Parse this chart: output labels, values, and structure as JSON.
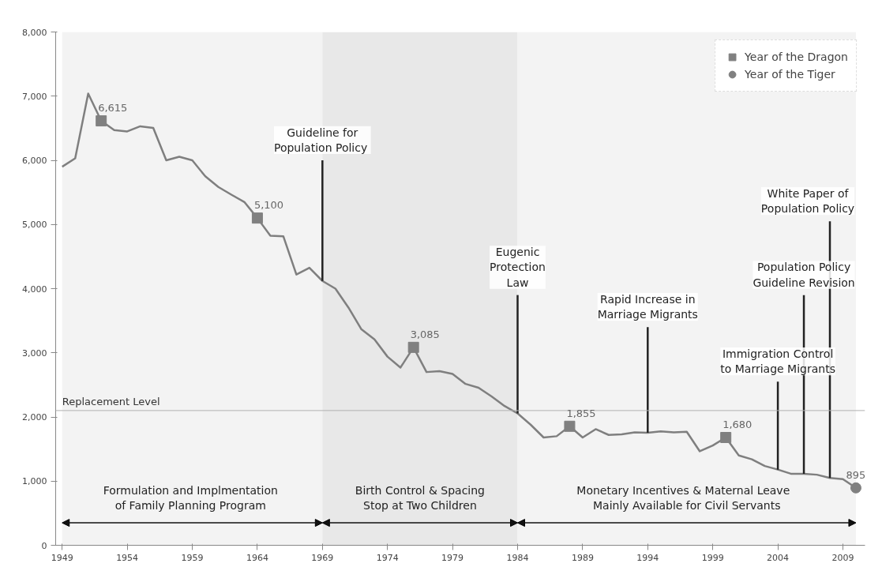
{
  "chart_data": {
    "type": "line",
    "x": [
      1949,
      1950,
      1951,
      1952,
      1953,
      1954,
      1955,
      1956,
      1957,
      1958,
      1959,
      1960,
      1961,
      1962,
      1963,
      1964,
      1965,
      1966,
      1967,
      1968,
      1969,
      1970,
      1971,
      1972,
      1973,
      1974,
      1975,
      1976,
      1977,
      1978,
      1979,
      1980,
      1981,
      1982,
      1983,
      1984,
      1985,
      1986,
      1987,
      1988,
      1989,
      1990,
      1991,
      1992,
      1993,
      1994,
      1995,
      1996,
      1997,
      1998,
      1999,
      2000,
      2001,
      2002,
      2003,
      2004,
      2005,
      2006,
      2007,
      2008,
      2009,
      2010
    ],
    "series": [
      {
        "color": "#7f7f7f",
        "marker": "none",
        "line_style": "solid",
        "values": [
          5900,
          6030,
          7040,
          6615,
          6470,
          6450,
          6530,
          6505,
          6000,
          6055,
          6000,
          5750,
          5585,
          5465,
          5350,
          5100,
          4825,
          4815,
          4220,
          4325,
          4120,
          4000,
          3705,
          3365,
          3210,
          2940,
          2770,
          3085,
          2700,
          2715,
          2670,
          2515,
          2455,
          2320,
          2170,
          2055,
          1880,
          1680,
          1700,
          1855,
          1680,
          1810,
          1720,
          1730,
          1760,
          1755,
          1775,
          1760,
          1770,
          1465,
          1555,
          1680,
          1400,
          1340,
          1235,
          1180,
          1115,
          1115,
          1100,
          1050,
          1030,
          895
        ]
      },
      {
        "type": "scatter",
        "name": "Year of the Dragon",
        "color": "#808080",
        "marker": "square",
        "value_labels": [
          "6,615",
          "5,100",
          "3,085",
          "1,855",
          "1,680"
        ],
        "x": [
          1952,
          1964,
          1976,
          1988,
          2000
        ],
        "values": [
          6615,
          5100,
          3085,
          1855,
          1680
        ]
      },
      {
        "type": "scatter",
        "name": "Year of the Tiger",
        "color": "#808080",
        "marker": "circle",
        "value_labels": [
          "895"
        ],
        "x": [
          2010
        ],
        "values": [
          895
        ]
      }
    ],
    "xlim": [
      1948.5,
      2010.7
    ],
    "xticks": [
      1949,
      1954,
      1959,
      1964,
      1969,
      1974,
      1979,
      1984,
      1989,
      1994,
      1999,
      2004,
      2009
    ],
    "ylim": [
      0,
      8000
    ],
    "yticks": [
      0,
      {
        "value": 1000,
        "label": "1,000"
      },
      {
        "value": 2000,
        "label": "2,000"
      },
      {
        "value": 3000,
        "label": "3,000"
      },
      {
        "value": 4000,
        "label": "4,000"
      },
      {
        "value": 5000,
        "label": "5,000"
      },
      {
        "value": 6000,
        "label": "6,000"
      },
      {
        "value": 7000,
        "label": "7,000"
      },
      {
        "value": 8000,
        "label": "8,000"
      }
    ],
    "ref_lines": [
      {
        "axis": "y",
        "value": 2100,
        "label": "Replacement Level",
        "color": "#b0b0b0",
        "line_style": "solid"
      }
    ],
    "bands": [
      {
        "axis": "x",
        "from": 1949,
        "to": 1969,
        "color": "#f3f3f3",
        "label": "Formulation  and Implmentation\nof  Family Planning Program"
      },
      {
        "axis": "x",
        "from": 1969,
        "to": 1984,
        "color": "#e8e8e8",
        "label": "Birth Control & Spacing\nStop at Two Children"
      },
      {
        "axis": "x",
        "from": 1984,
        "to": 2010,
        "color": "#f3f3f3",
        "label": "Monetary  Incentives  & Maternal Leave\nMainly Available for Civil Servants"
      }
    ],
    "annotations": [
      {
        "text": "Guideline for\nPopulation  Policy",
        "x": 1969,
        "y": 4120
      },
      {
        "text": "Eugenic\nProtection\nLaw",
        "x": 1984,
        "y": 2055
      },
      {
        "text": "Rapid Increase in\nMarriage Migrants",
        "x": 1994,
        "y": 1755
      },
      {
        "text": "Immigration Control\nto Marriage Migrants",
        "x": 2004,
        "y": 1180
      },
      {
        "text": "Population Policy\nGuideline Revision",
        "x": 2006,
        "y": 1115
      },
      {
        "text": "White Paper of\nPopulation Policy",
        "x": 2008,
        "y": 1050
      }
    ],
    "grid": false,
    "legend": "top right"
  }
}
